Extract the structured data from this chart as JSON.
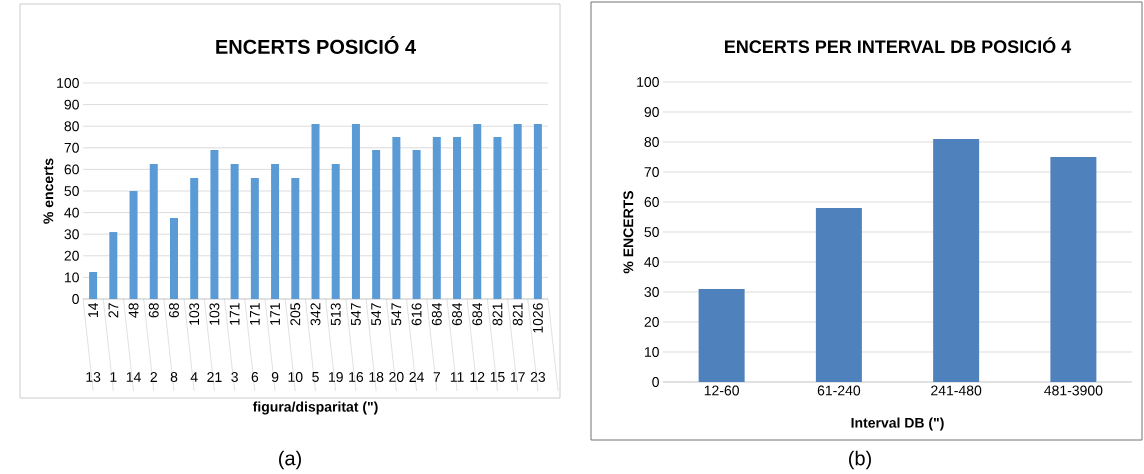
{
  "chart_data": [
    {
      "type": "bar",
      "title": "ENCERTS POSICIÓ 4",
      "xlabel": "figura/disparitat (\")",
      "ylabel": "% encerts",
      "categories": [
        "14",
        "27",
        "48",
        "68",
        "68",
        "103",
        "103",
        "171",
        "171",
        "171",
        "205",
        "342",
        "513",
        "547",
        "547",
        "547",
        "616",
        "684",
        "684",
        "684",
        "821",
        "821",
        "1026"
      ],
      "values": [
        12.5,
        31,
        50,
        62.5,
        37.5,
        56,
        69,
        62.5,
        56,
        62.5,
        56,
        81,
        62.5,
        81,
        69,
        75,
        69,
        75,
        75,
        81,
        75,
        81,
        81
      ],
      "color": "#5b9bd5",
      "ylim": [
        0,
        100
      ],
      "yticks": [
        0,
        10,
        20,
        30,
        40,
        50,
        60,
        70,
        80,
        90,
        100
      ],
      "grid": "y",
      "annotations": [
        "13",
        "1",
        "14",
        "2",
        "8",
        "4",
        "21",
        "3",
        "6",
        "9",
        "10",
        "5",
        "19",
        "16",
        "18",
        "20",
        "24",
        "7",
        "11",
        "12",
        "15",
        "17",
        "23",
        "(a)"
      ]
    },
    {
      "type": "bar",
      "title": "ENCERTS PER INTERVAL DB POSICIÓ 4",
      "xlabel": "Interval DB (\")",
      "ylabel": "% ENCERTS",
      "categories": [
        "12-60",
        "61-240",
        "241-480",
        "481-3900"
      ],
      "values": [
        31,
        58,
        81,
        75
      ],
      "color": "#4f81bd",
      "ylim": [
        0,
        100
      ],
      "yticks": [
        0,
        10,
        20,
        30,
        40,
        50,
        60,
        70,
        80,
        90,
        100
      ],
      "grid": "y",
      "annotations": [
        "(b)"
      ]
    }
  ]
}
